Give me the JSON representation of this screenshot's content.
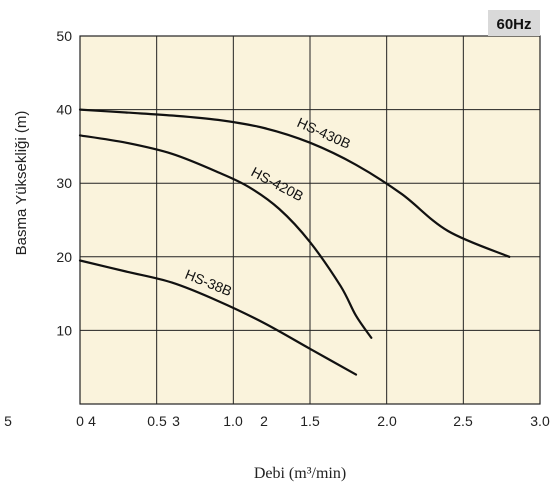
{
  "chart_data": {
    "type": "line",
    "frequency_badge": "60Hz",
    "ylabel": "Basma Yüksekliği (m)",
    "xlabel": "Debi (m³/min)",
    "ylim": [
      0,
      50
    ],
    "xlim": [
      0,
      3.0
    ],
    "grid": true,
    "background_color": "#faf3dc",
    "badge_color": "#d9d9d9",
    "line_color": "#111111",
    "y_ticks": [
      "10",
      "20",
      "30",
      "40",
      "50"
    ],
    "x_tick_labels": [
      "5",
      "0",
      "4",
      "0.5",
      "3",
      "1.0",
      "2",
      "1.5",
      "2.0",
      "2.5",
      "3.0"
    ],
    "series": [
      {
        "name": "HS-430B",
        "x": [
          0,
          0.3,
          0.6,
          0.9,
          1.2,
          1.5,
          1.8,
          2.1,
          2.4,
          2.8
        ],
        "y": [
          40,
          39.6,
          39.2,
          38.6,
          37.5,
          35.5,
          32.5,
          28.5,
          23.5,
          20
        ]
      },
      {
        "name": "HS-420B",
        "x": [
          0,
          0.3,
          0.6,
          0.9,
          1.1,
          1.3,
          1.5,
          1.7,
          1.8,
          1.9
        ],
        "y": [
          36.5,
          35.5,
          34,
          31.5,
          29.5,
          26.5,
          22,
          16,
          12,
          9
        ]
      },
      {
        "name": "HS-38B",
        "x": [
          0,
          0.3,
          0.6,
          0.9,
          1.2,
          1.5,
          1.8
        ],
        "y": [
          19.5,
          18,
          16.5,
          14,
          11,
          7.5,
          4
        ]
      }
    ]
  }
}
